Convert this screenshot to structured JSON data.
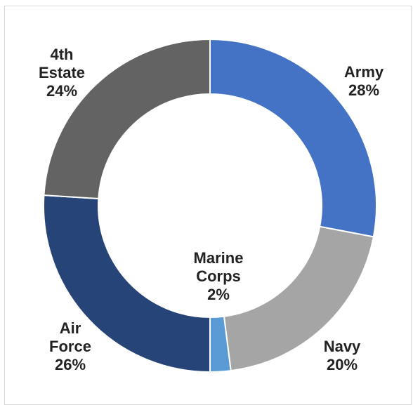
{
  "chart_data": {
    "type": "pie",
    "style": "donut",
    "title": "",
    "slices": [
      {
        "name": "Army",
        "label_lines": [
          "Army"
        ],
        "value": 28,
        "value_label": "28%",
        "color": "#4472C4"
      },
      {
        "name": "Navy",
        "label_lines": [
          "Navy"
        ],
        "value": 20,
        "value_label": "20%",
        "color": "#A5A5A5"
      },
      {
        "name": "Marine Corps",
        "label_lines": [
          "Marine",
          "Corps"
        ],
        "value": 2,
        "value_label": "2%",
        "color": "#5B9BD5"
      },
      {
        "name": "Air Force",
        "label_lines": [
          "Air",
          "Force"
        ],
        "value": 26,
        "value_label": "26%",
        "color": "#264478"
      },
      {
        "name": "4th Estate",
        "label_lines": [
          "4th",
          "Estate"
        ],
        "value": 24,
        "value_label": "24%",
        "color": "#636363"
      }
    ],
    "start_angle_deg": 0,
    "direction": "clockwise",
    "legend": "none"
  }
}
